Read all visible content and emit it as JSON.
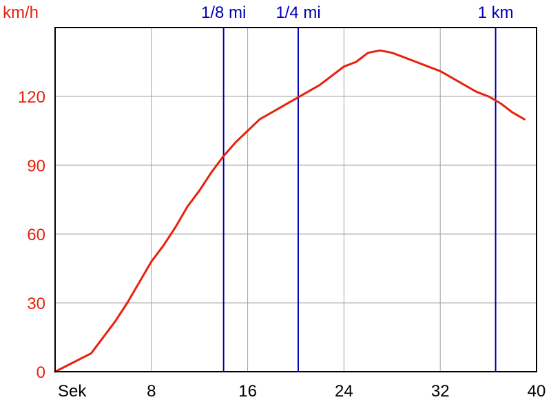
{
  "chart_data": {
    "type": "line",
    "ylabel": "km/h",
    "xlabel": "Sek",
    "xlim": [
      0,
      40
    ],
    "ylim": [
      0,
      150
    ],
    "x_ticks": [
      8,
      16,
      24,
      32,
      40
    ],
    "y_ticks": [
      0,
      30,
      60,
      90,
      120
    ],
    "grid": true,
    "colors": {
      "series": "#e8200c",
      "markers": "#0000b4",
      "y_axis_text": "#e8200c",
      "x_axis_text": "#000000",
      "grid": "#a0a0a0",
      "frame": "#000000"
    },
    "series": [
      {
        "x": [
          0,
          3,
          5,
          6,
          7,
          8,
          9,
          10,
          11,
          12,
          13,
          14,
          15,
          16,
          17,
          18,
          19,
          20,
          21,
          22,
          23,
          24,
          25,
          26,
          27,
          28,
          29,
          30,
          31,
          32,
          33,
          34,
          35,
          36,
          37,
          38,
          39
        ],
        "y": [
          0,
          8,
          22,
          30,
          39,
          48,
          55,
          63,
          72,
          79,
          87,
          94,
          100,
          105,
          110,
          113,
          116,
          119,
          122,
          125,
          129,
          133,
          135,
          139,
          140,
          139,
          137,
          135,
          133,
          131,
          128,
          125,
          122,
          120,
          117,
          113,
          110
        ]
      }
    ],
    "markers": [
      {
        "label": "1/8 mi",
        "x": 14
      },
      {
        "label": "1/4 mi",
        "x": 20.2
      },
      {
        "label": "1 km",
        "x": 36.6
      }
    ]
  }
}
